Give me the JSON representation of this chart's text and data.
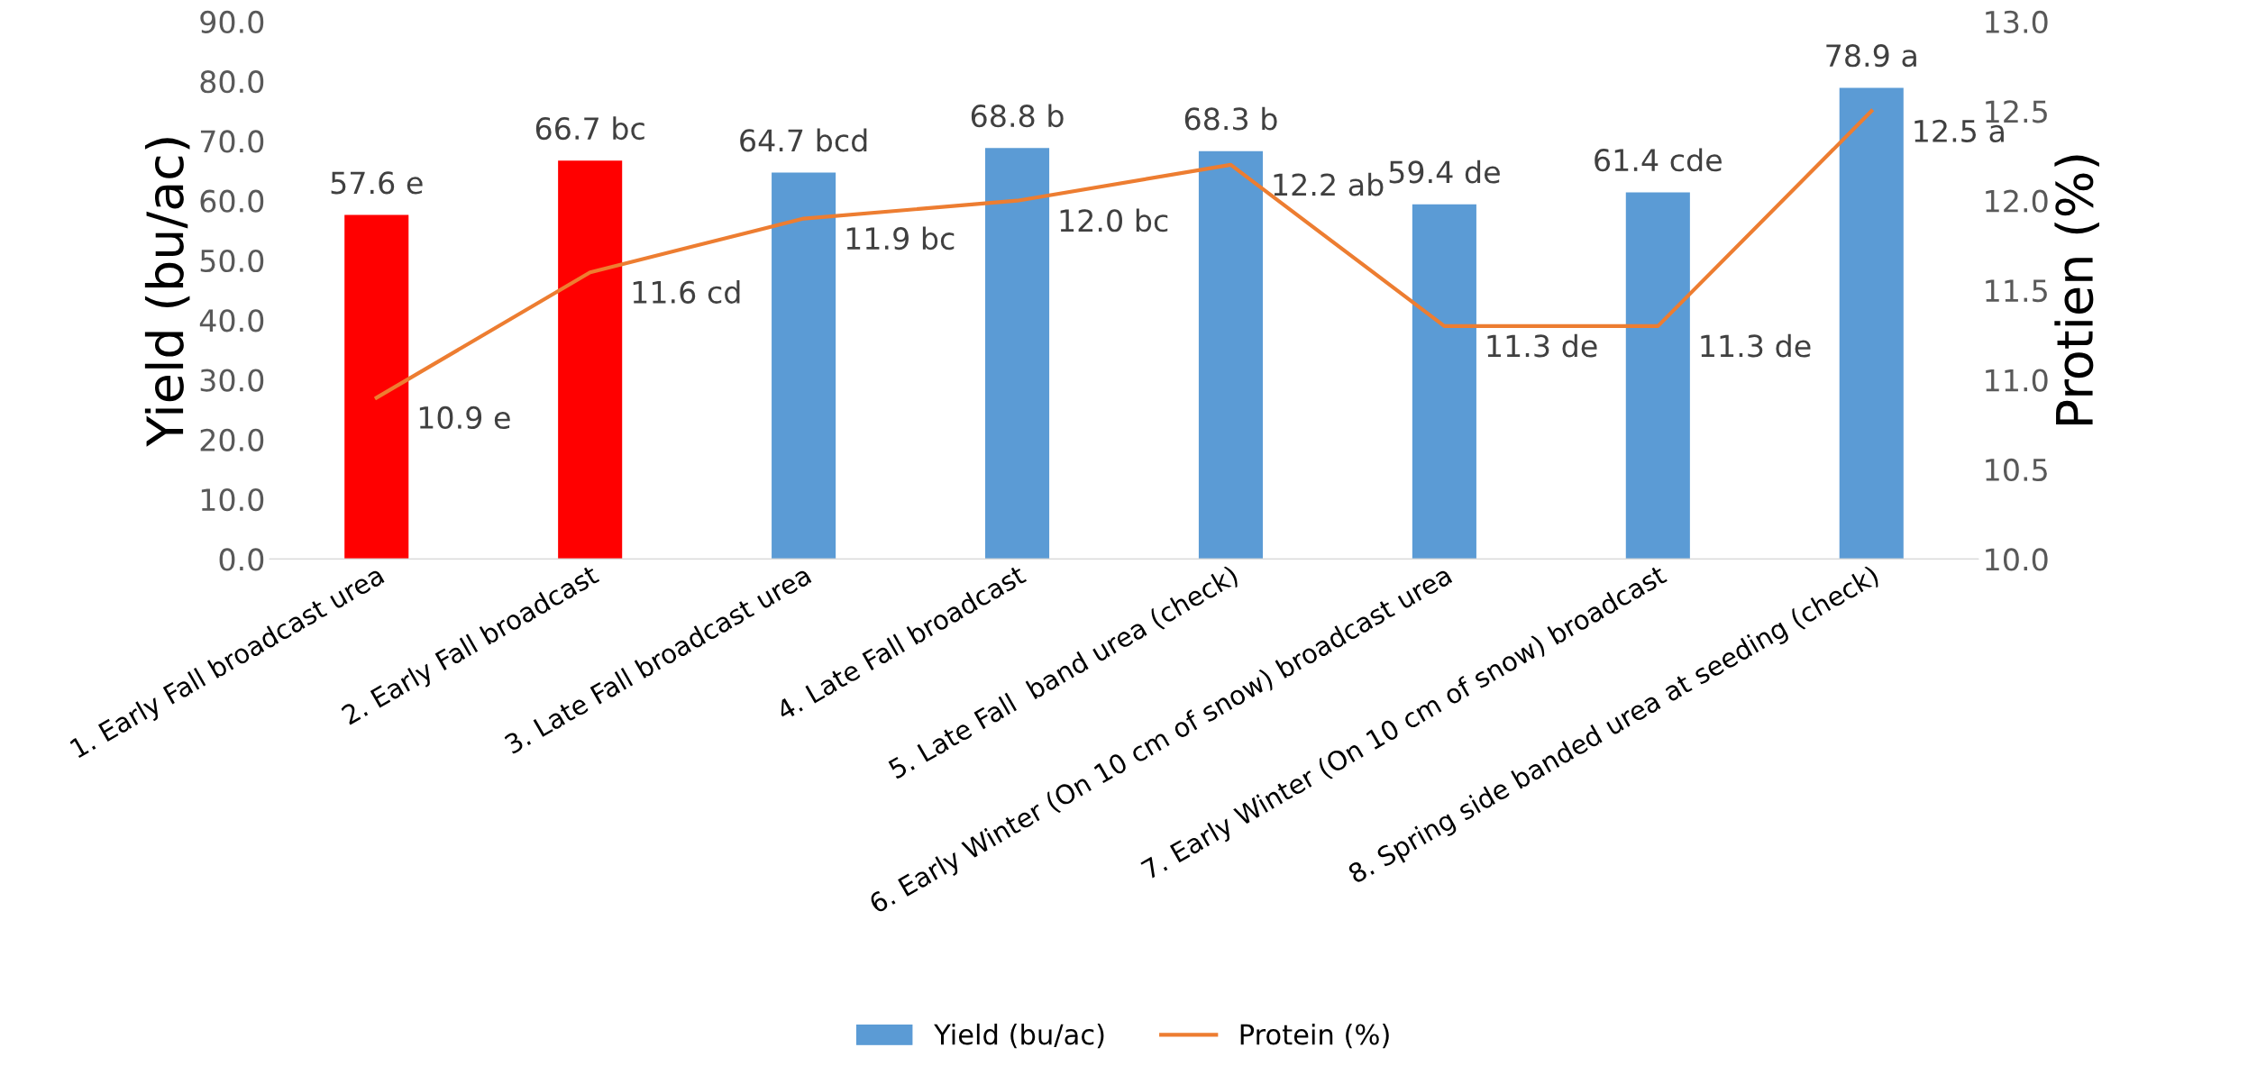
{
  "chart_data": {
    "type": "bar",
    "categories": [
      "1. Early Fall broadcast urea",
      "2. Early Fall broadcast",
      "3. Late Fall broadcast urea",
      "4. Late Fall broadcast",
      "5. Late Fall  band urea (check)",
      "6. Early Winter (On 10 cm of snow) broadcast urea",
      "7. Early Winter (On 10 cm of snow) broadcast",
      "8. Spring side banded urea at seeding (check)"
    ],
    "ylabel": "Yield (bu/ac)",
    "y2label": "Protien (%)",
    "ylim": [
      0,
      90
    ],
    "yticks": [
      {
        "value": 0,
        "label": "0.0"
      },
      {
        "value": 10,
        "label": "10.0"
      },
      {
        "value": 20,
        "label": "20.0"
      },
      {
        "value": 30,
        "label": "30.0"
      },
      {
        "value": 40,
        "label": "40.0"
      },
      {
        "value": 50,
        "label": "50.0"
      },
      {
        "value": 60,
        "label": "60.0"
      },
      {
        "value": 70,
        "label": "70.0"
      },
      {
        "value": 80,
        "label": "80.0"
      },
      {
        "value": 90,
        "label": "90.0"
      }
    ],
    "y2lim": [
      10,
      13
    ],
    "y2ticks": [
      {
        "value": 10,
        "label": "10.0"
      },
      {
        "value": 10.5,
        "label": "10.5"
      },
      {
        "value": 11,
        "label": "11.0"
      },
      {
        "value": 11.5,
        "label": "11.5"
      },
      {
        "value": 12,
        "label": "12.0"
      },
      {
        "value": 12.5,
        "label": "12.5"
      },
      {
        "value": 13,
        "label": "13.0"
      }
    ],
    "series": [
      {
        "name": "Yield (bu/ac)",
        "color": "#5b9bd5",
        "colors": [
          "#ff0000",
          "#ff0000",
          "#5b9bd5",
          "#5b9bd5",
          "#5b9bd5",
          "#5b9bd5",
          "#5b9bd5",
          "#5b9bd5"
        ],
        "values": [
          57.6,
          66.7,
          64.7,
          68.8,
          68.3,
          59.4,
          61.4,
          78.9
        ],
        "value_labels": [
          "57.6 e",
          "66.7 bc",
          "64.7 bcd",
          "68.8 b",
          "68.3 b",
          "59.4 de",
          "61.4 cde",
          "78.9 a"
        ]
      },
      {
        "name": "Protein (%)",
        "type": "line",
        "axis": "y2",
        "color": "#ed7d31",
        "values": [
          10.9,
          11.6,
          11.9,
          12.0,
          12.2,
          11.3,
          11.3,
          12.5
        ],
        "value_labels": [
          "10.9 e",
          "11.6 cd",
          "11.9 bc",
          "12.0 bc",
          "12.2 ab",
          "11.3 de",
          "11.3 de",
          "12.5 a"
        ]
      }
    ],
    "grid": false,
    "legend": "bottom"
  }
}
